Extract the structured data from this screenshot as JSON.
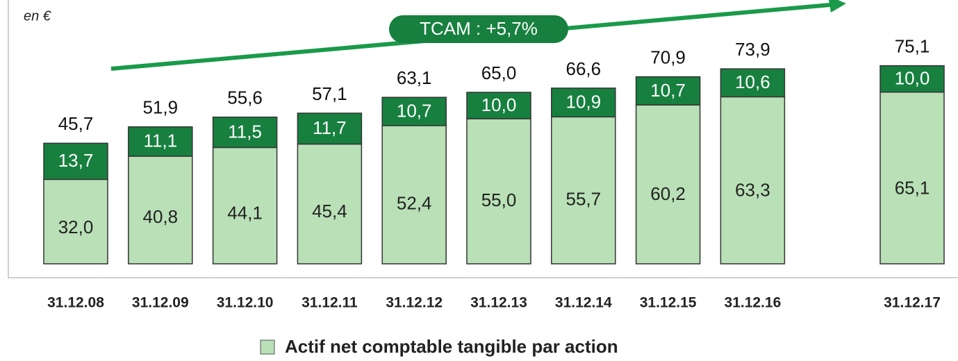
{
  "chart_data": {
    "type": "stacked-bar",
    "unit_note": "en €",
    "annotation": "TCAM : +5,7%",
    "categories": [
      "31.12.08",
      "31.12.09",
      "31.12.10",
      "31.12.11",
      "31.12.12",
      "31.12.13",
      "31.12.14",
      "31.12.15",
      "31.12.16",
      "31.12.17"
    ],
    "series": [
      {
        "name": "Actif net comptable tangible par action",
        "color": "#b9e0b6",
        "values": [
          32.0,
          40.8,
          44.1,
          45.4,
          52.4,
          55.0,
          55.7,
          60.2,
          63.3,
          65.1
        ],
        "value_labels": [
          "32,0",
          "40,8",
          "44,1",
          "45,4",
          "52,4",
          "55,0",
          "55,7",
          "60,2",
          "63,3",
          "65,1"
        ]
      },
      {
        "color": "#17803f",
        "values": [
          13.7,
          11.1,
          11.5,
          11.7,
          10.7,
          10.0,
          10.9,
          10.7,
          10.6,
          10.0
        ],
        "value_labels": [
          "13,7",
          "11,1",
          "11,5",
          "11,7",
          "10,7",
          "10,0",
          "10,9",
          "10,7",
          "10,6",
          "10,0"
        ]
      }
    ],
    "totals": [
      45.7,
      51.9,
      55.6,
      57.1,
      63.1,
      65.0,
      66.6,
      70.9,
      73.9,
      75.1
    ],
    "total_labels": [
      "45,7",
      "51,9",
      "55,6",
      "57,1",
      "63,1",
      "65,0",
      "66,6",
      "70,9",
      "73,9",
      "75,1"
    ],
    "ylim": [
      0,
      100
    ]
  }
}
